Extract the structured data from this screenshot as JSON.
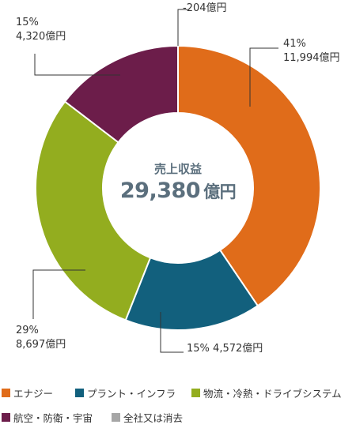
{
  "chart_data": {
    "type": "pie",
    "variant": "donut",
    "center_title": "売上収益",
    "center_value": "29,380",
    "center_unit": "億円",
    "series": [
      {
        "name": "エナジー",
        "share": "41%",
        "value": 11994,
        "amount_label": "11,994億円",
        "color": "#e06c1a"
      },
      {
        "name": "プラント・インフラ",
        "share": "15%",
        "value": 4572,
        "amount_label": "4,572億円",
        "color": "#12607d"
      },
      {
        "name": "物流・冷熱・ドライブシステム",
        "share": "29%",
        "value": 8697,
        "amount_label": "8,697億円",
        "color": "#93ad1f"
      },
      {
        "name": "航空・防衛・宇宙",
        "share": "15%",
        "value": 4320,
        "amount_label": "4,320億円",
        "color": "#6c1d4a"
      },
      {
        "name": "全社又は消去",
        "share": "",
        "value": -204,
        "amount_label": "-204億円",
        "color": "#a6a6a6"
      }
    ]
  }
}
